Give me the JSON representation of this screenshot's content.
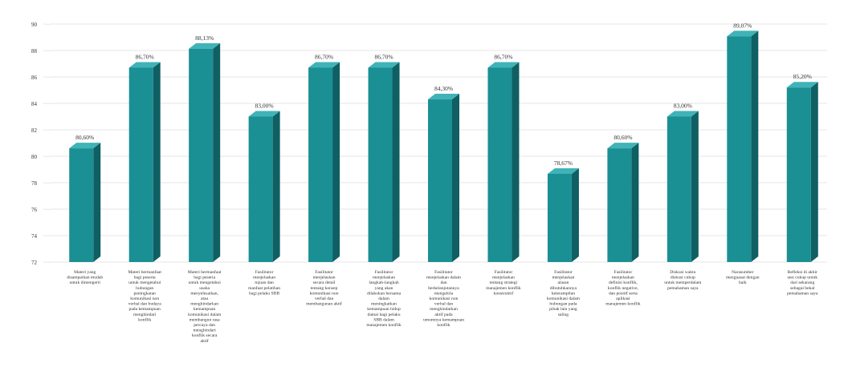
{
  "colors": {
    "bar_front": "#1a8f94",
    "bar_side": "#0f5f63",
    "bar_top": "#3fb3b8",
    "grid": "#e6e6e6",
    "text": "#333333"
  },
  "chart_data": {
    "type": "bar",
    "orientation": "vertical",
    "style": "3d-columns",
    "grid": true,
    "legend": "none",
    "ylim": [
      72,
      90
    ],
    "yticks": [
      72,
      74,
      76,
      78,
      80,
      82,
      84,
      86,
      88,
      90
    ],
    "ytick_labels": [
      "72",
      "74",
      "76",
      "78",
      "80",
      "82",
      "84",
      "86",
      "88",
      "90"
    ],
    "categories": [
      "Materi yang disampaikan mudah untuk dimengerti",
      "Materi bermanfaat bagi peserta untuk mengetahui hubungan peningkatan komunikasi non verbal dan budaya pada kemampuan menghindari konflik",
      "Materi bermanfaat bagi peserta untuk mengetahui usaha menyelesaikan, atau menghindarkan kemampuan komunikasi dalam membangun rasa percaya dan menghindari konflik secara aktif",
      "Fasilitator menjelaskan tujuan dan manfaat pelatihan bagi pelaku SBB",
      "Fasilitator menjelaskan secara detail tentang konsep komunikasi non verbal dan membangunan aktif",
      "Fasilitator menjelaskan langkah-langkah yang akan dilakukan bersama dalam meningkatkan kemampuan hidup damai bagi pelaku SBB dalam manajemen konflik",
      "Fasilitator menjelaskan dalam dan berkelanjutannya mengelola komunikasi non verbal dan menghindarkan aktif pada umumnya kemampuan konflik",
      "Fasilitator menjelaskan tentang strategi manajemen konflik konstruktif",
      "Fasilitator menjelaskan alasan dibutuhkannya keterampilan komunikasi dalam hubungan pada pihak lain yang saling",
      "Fasilitator menjelaskan definisi konflik, konflik negative, dan positif serta aplikasi manajemen konflik",
      "Diskusi waktu diskusi cukup untuk memperdalam pemahaman saya",
      "Narasumber menguasai dengan baik",
      "Refleksi di akhir sesi cukup untuk dari sekarang sebagai bekal pemahaman saya"
    ],
    "values": [
      80.6,
      86.7,
      88.13,
      83.0,
      86.7,
      86.7,
      84.3,
      86.7,
      78.67,
      80.6,
      83.0,
      89.07,
      85.2
    ],
    "data_labels": [
      "80,60%",
      "86,70%",
      "88,13%",
      "83,00%",
      "86,70%",
      "86,70%",
      "84,30%",
      "86,70%",
      "78,67%",
      "80,60%",
      "83,00%",
      "89,07%",
      "85,20%"
    ]
  }
}
